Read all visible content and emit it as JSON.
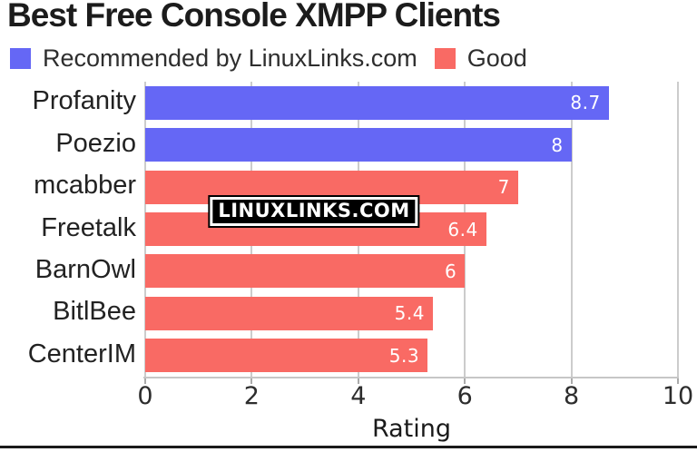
{
  "title": "Best Free Console XMPP Clients",
  "watermark": "LINUXLINKS.COM",
  "legend": [
    {
      "label": "Recommended by LinuxLinks.com",
      "color": "#6567f5"
    },
    {
      "label": "Good",
      "color": "#f96a64"
    }
  ],
  "chart_data": {
    "type": "bar",
    "orientation": "horizontal",
    "title": "Best Free Console XMPP Clients",
    "categories": [
      "Profanity",
      "Poezio",
      "mcabber",
      "Freetalk",
      "BarnOwl",
      "BitlBee",
      "CenterIM"
    ],
    "values": [
      8.7,
      8,
      7,
      6.4,
      6,
      5.4,
      5.3
    ],
    "value_labels": [
      "8.7",
      "8",
      "7",
      "6.4",
      "6",
      "5.4",
      "5.3"
    ],
    "series_by_bar": [
      "Recommended by LinuxLinks.com",
      "Recommended by LinuxLinks.com",
      "Good",
      "Good",
      "Good",
      "Good",
      "Good"
    ],
    "bar_colors": [
      "#6567f5",
      "#6567f5",
      "#f96a64",
      "#f96a64",
      "#f96a64",
      "#f96a64",
      "#f96a64"
    ],
    "xlabel": "Rating",
    "xlim": [
      0,
      10
    ],
    "xticks": [
      0,
      2,
      4,
      6,
      8,
      10
    ],
    "grid": true,
    "grid_color": "#cccccc",
    "legend_position": "top-left",
    "value_label_position": "inside-end",
    "value_label_color": "#ffffff"
  }
}
